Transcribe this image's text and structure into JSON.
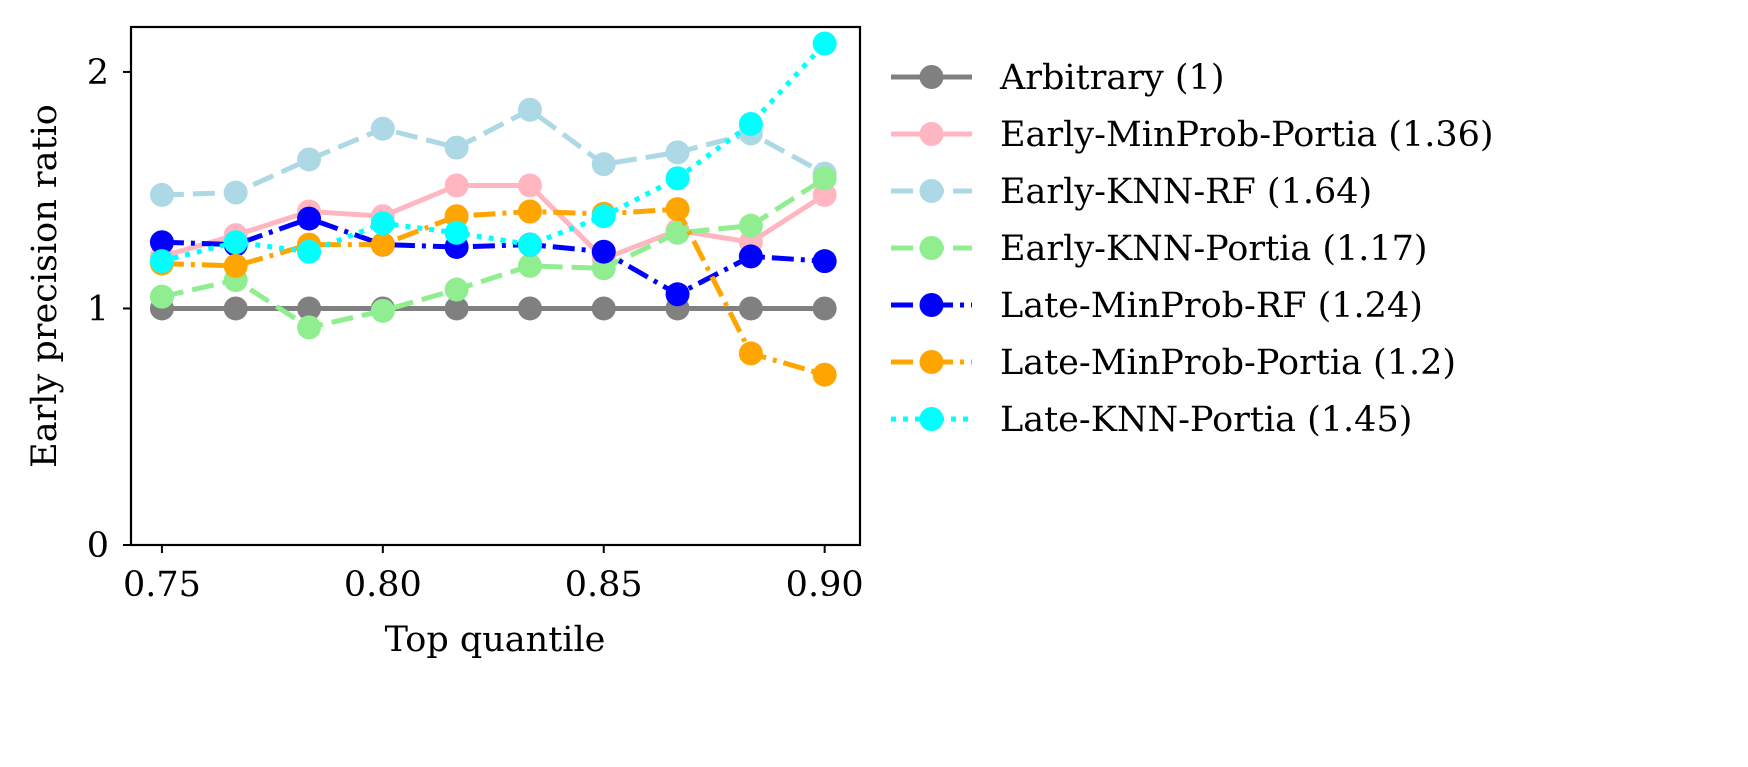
{
  "chart_data": {
    "type": "line",
    "title": "",
    "xlabel": "Top quantile",
    "ylabel": "Early precision ratio",
    "xlim": [
      0.743,
      0.908
    ],
    "ylim": [
      0,
      2.19
    ],
    "xticks": [
      0.75,
      0.8,
      0.85,
      0.9
    ],
    "xtick_labels": [
      "0.75",
      "0.80",
      "0.85",
      "0.90"
    ],
    "yticks": [
      0,
      1,
      2
    ],
    "ytick_labels": [
      "0",
      "1",
      "2"
    ],
    "grid": false,
    "legend_position": "outside-right",
    "x": [
      0.75,
      0.7667,
      0.7833,
      0.8,
      0.8167,
      0.8333,
      0.85,
      0.8667,
      0.8833,
      0.9
    ],
    "series": [
      {
        "name": "Arbitrary (1)",
        "color": "#808080",
        "dash": "solid",
        "values": [
          1.0,
          1.0,
          1.0,
          1.0,
          1.0,
          1.0,
          1.0,
          1.0,
          1.0,
          1.0
        ]
      },
      {
        "name": "Early-MinProb-Portia (1.36)",
        "color": "#ffb6c1",
        "dash": "solid",
        "values": [
          1.22,
          1.31,
          1.41,
          1.39,
          1.52,
          1.52,
          1.21,
          1.33,
          1.28,
          1.48
        ]
      },
      {
        "name": "Early-KNN-RF (1.64)",
        "color": "#add8e6",
        "dash": "dashed",
        "values": [
          1.48,
          1.49,
          1.63,
          1.76,
          1.68,
          1.84,
          1.61,
          1.66,
          1.74,
          1.57
        ]
      },
      {
        "name": "Early-KNN-Portia (1.17)",
        "color": "#90ee90",
        "dash": "dashed",
        "values": [
          1.05,
          1.12,
          0.92,
          0.99,
          1.08,
          1.18,
          1.17,
          1.32,
          1.35,
          1.55
        ]
      },
      {
        "name": "Late-MinProb-RF (1.24)",
        "color": "#0000ff",
        "dash": "dashdot",
        "values": [
          1.28,
          1.27,
          1.38,
          1.27,
          1.26,
          1.27,
          1.24,
          1.06,
          1.22,
          1.2
        ]
      },
      {
        "name": "Late-MinProb-Portia (1.2)",
        "color": "#ffa500",
        "dash": "dashdot",
        "values": [
          1.19,
          1.18,
          1.27,
          1.27,
          1.39,
          1.41,
          1.4,
          1.42,
          0.81,
          0.72
        ]
      },
      {
        "name": "Late-KNN-Portia (1.45)",
        "color": "#00ffff",
        "dash": "dotted",
        "values": [
          1.2,
          1.28,
          1.24,
          1.36,
          1.32,
          1.27,
          1.39,
          1.55,
          1.78,
          2.12
        ]
      }
    ]
  }
}
